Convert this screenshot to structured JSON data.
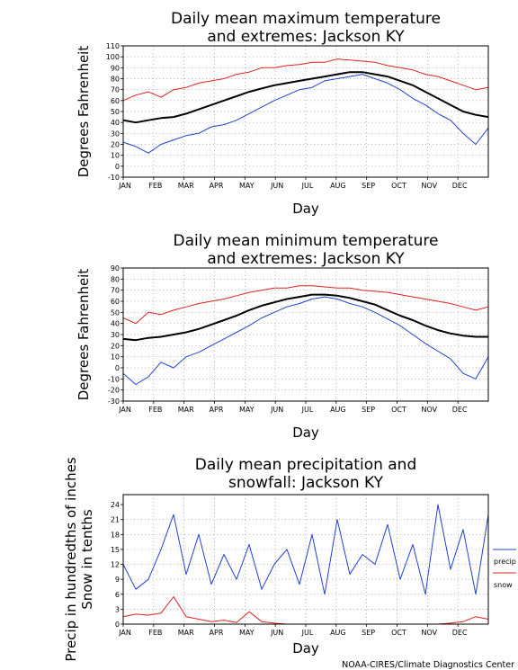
{
  "credit": "NOAA-CIRES/Climate Diagnostics Center",
  "colors": {
    "mean": "#000000",
    "high_extreme": "#e02020",
    "low_extreme": "#2040d0",
    "grid": "#999999"
  },
  "chart_data": [
    {
      "type": "line",
      "title_lines": [
        "Daily mean maximum temperature",
        "and extremes: Jackson KY"
      ],
      "ylabel": "Degrees Fahrenheit",
      "xlabel": "Day",
      "x_tick_labels": [
        "JAN",
        "FEB",
        "MAR",
        "APR",
        "MAY",
        "JUN",
        "JUL",
        "AUG",
        "SEP",
        "OCT",
        "NOV",
        "DEC"
      ],
      "y_ticks": [
        -10,
        0,
        10,
        20,
        30,
        40,
        50,
        60,
        70,
        80,
        90,
        100,
        110
      ],
      "ylim": [
        -10,
        110
      ],
      "grid": true,
      "series": [
        {
          "key": "mean",
          "color": "#000000",
          "values": [
            42,
            40,
            42,
            44,
            45,
            48,
            52,
            56,
            60,
            64,
            68,
            71,
            74,
            76,
            78,
            80,
            82,
            84,
            86,
            86,
            84,
            82,
            78,
            74,
            68,
            62,
            56,
            50,
            47,
            45
          ]
        },
        {
          "key": "high",
          "color": "#e02020",
          "values": [
            60,
            65,
            68,
            63,
            70,
            72,
            76,
            78,
            80,
            84,
            86,
            90,
            90,
            92,
            93,
            95,
            95,
            98,
            97,
            96,
            95,
            92,
            90,
            88,
            84,
            82,
            78,
            74,
            70,
            72
          ]
        },
        {
          "key": "low",
          "color": "#2040d0",
          "values": [
            22,
            18,
            12,
            20,
            24,
            28,
            30,
            36,
            38,
            42,
            48,
            54,
            60,
            65,
            70,
            72,
            78,
            80,
            82,
            84,
            80,
            76,
            70,
            62,
            56,
            48,
            42,
            30,
            20,
            35
          ]
        }
      ]
    },
    {
      "type": "line",
      "title_lines": [
        "Daily mean minimum temperature",
        "and extremes: Jackson KY"
      ],
      "ylabel": "Degrees Fahrenheit",
      "xlabel": "Day",
      "x_tick_labels": [
        "JAN",
        "FEB",
        "MAR",
        "APR",
        "MAY",
        "JUN",
        "JUL",
        "AUG",
        "SEP",
        "OCT",
        "NOV",
        "DEC"
      ],
      "y_ticks": [
        -30,
        -20,
        -10,
        0,
        10,
        20,
        30,
        40,
        50,
        60,
        70,
        80,
        90
      ],
      "ylim": [
        -30,
        90
      ],
      "grid": true,
      "series": [
        {
          "key": "mean",
          "color": "#000000",
          "values": [
            26,
            25,
            27,
            28,
            30,
            32,
            35,
            39,
            43,
            47,
            52,
            56,
            59,
            62,
            64,
            66,
            66,
            65,
            63,
            60,
            57,
            52,
            47,
            43,
            38,
            34,
            31,
            29,
            28,
            28
          ]
        },
        {
          "key": "high",
          "color": "#e02020",
          "values": [
            45,
            40,
            50,
            48,
            52,
            55,
            58,
            60,
            62,
            65,
            68,
            70,
            72,
            72,
            74,
            74,
            73,
            72,
            72,
            70,
            69,
            68,
            66,
            64,
            62,
            60,
            58,
            55,
            52,
            55
          ]
        },
        {
          "key": "low",
          "color": "#2040d0",
          "values": [
            -5,
            -15,
            -8,
            5,
            0,
            10,
            14,
            20,
            26,
            32,
            38,
            45,
            50,
            55,
            58,
            62,
            64,
            62,
            58,
            55,
            50,
            44,
            38,
            30,
            22,
            15,
            8,
            -5,
            -10,
            10
          ]
        }
      ]
    },
    {
      "type": "line",
      "title_lines": [
        "Daily mean precipitation and",
        "snowfall: Jackson KY"
      ],
      "ylabel_lines": [
        "Precip in hundredths of inches",
        "Snow in tenths"
      ],
      "xlabel": "Day",
      "x_tick_labels": [
        "JAN",
        "FEB",
        "MAR",
        "APR",
        "MAY",
        "JUN",
        "JUL",
        "AUG",
        "SEP",
        "OCT",
        "NOV",
        "DEC"
      ],
      "y_ticks": [
        0,
        3,
        6,
        9,
        12,
        15,
        18,
        21,
        24
      ],
      "ylim": [
        0,
        26
      ],
      "grid": true,
      "legend": {
        "position": "right",
        "entries": [
          {
            "label": "precip",
            "color": "#2040d0"
          },
          {
            "label": "snow",
            "color": "#e02020"
          }
        ]
      },
      "series": [
        {
          "key": "precip",
          "color": "#2040d0",
          "values": [
            12,
            7,
            9,
            15,
            22,
            10,
            18,
            8,
            14,
            9,
            16,
            7,
            12,
            15,
            8,
            18,
            6,
            21,
            10,
            14,
            12,
            20,
            9,
            16,
            6,
            24,
            11,
            19,
            6,
            22
          ]
        },
        {
          "key": "snow",
          "color": "#e02020",
          "values": [
            1.5,
            2,
            1.8,
            2.2,
            5.5,
            1.5,
            1,
            0.5,
            0.8,
            0.3,
            2.5,
            0.5,
            0.2,
            0,
            0,
            0,
            0,
            0,
            0,
            0,
            0,
            0,
            0,
            0,
            0,
            0,
            0.2,
            0.5,
            1.5,
            1
          ]
        }
      ]
    }
  ]
}
